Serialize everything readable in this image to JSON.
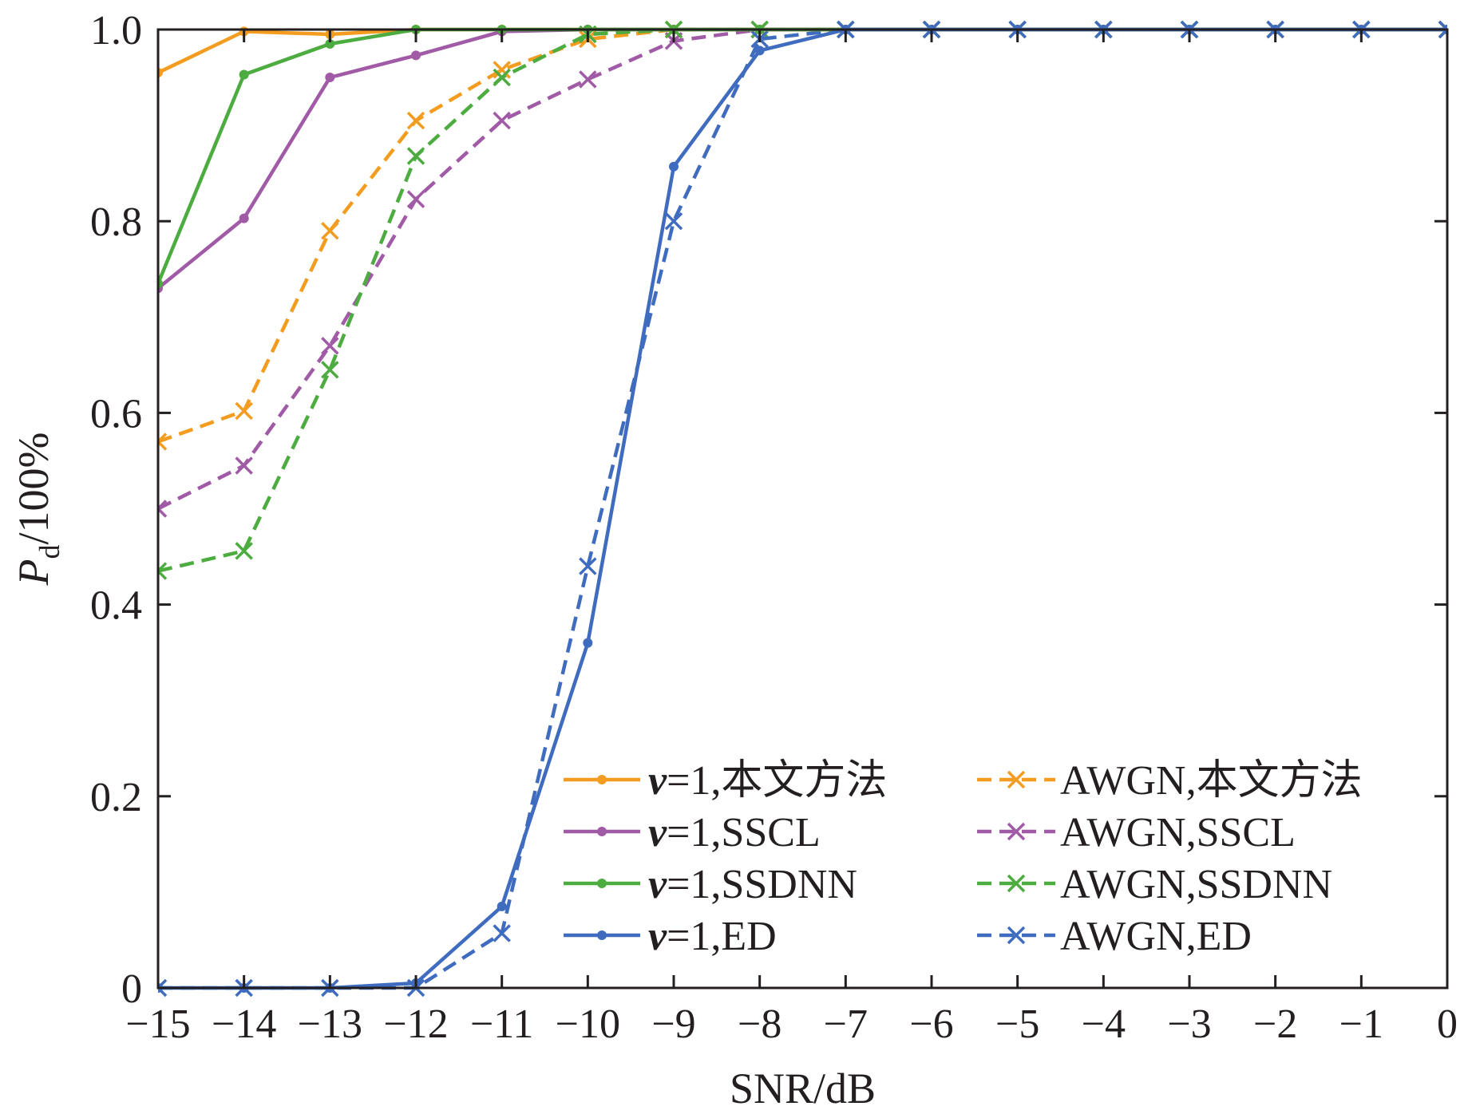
{
  "chart_data": {
    "type": "line",
    "xlabel": "SNR/dB",
    "ylabel": {
      "main": "P",
      "sub": "d",
      "rest": "/100%"
    },
    "xlim": [
      -15,
      0
    ],
    "ylim": [
      0,
      1
    ],
    "x": [
      -15,
      -14,
      -13,
      -12,
      -11,
      -10,
      -9,
      -8,
      -7,
      -6,
      -5,
      -4,
      -3,
      -2,
      -1,
      0
    ],
    "xticks": [
      -15,
      -14,
      -13,
      -12,
      -11,
      -10,
      -9,
      -8,
      -7,
      -6,
      -5,
      -4,
      -3,
      -2,
      -1,
      0
    ],
    "xtick_labels": [
      "−15",
      "−14",
      "−13",
      "−12",
      "−11",
      "−10",
      "−9",
      "−8",
      "−7",
      "−6",
      "−5",
      "−4",
      "−3",
      "−2",
      "−1",
      "0"
    ],
    "yticks": [
      0,
      0.2,
      0.4,
      0.6,
      0.8,
      1.0
    ],
    "ytick_labels": [
      "0",
      "0.2",
      "0.4",
      "0.6",
      "0.8",
      "1.0"
    ],
    "grid": false,
    "legend_position": "bottom-right, two columns",
    "series": [
      {
        "name": "v=1,本文方法",
        "name_italic": "v",
        "name_rest": "=1,本文方法",
        "color": "#f39c1f",
        "dash": "solid",
        "marker": "dot",
        "values": [
          0.955,
          0.998,
          0.995,
          1,
          1,
          1,
          1,
          1,
          1,
          1,
          1,
          1,
          1,
          1,
          1,
          1
        ]
      },
      {
        "name": "v=1,SSCL",
        "name_italic": "v",
        "name_rest": "=1,SSCL",
        "color": "#a05aa6",
        "dash": "solid",
        "marker": "dot",
        "values": [
          0.73,
          0.803,
          0.95,
          0.973,
          0.998,
          1,
          1,
          1,
          1,
          1,
          1,
          1,
          1,
          1,
          1,
          1
        ]
      },
      {
        "name": "v=1,SSDNN",
        "name_italic": "v",
        "name_rest": "=1,SSDNN",
        "color": "#4dac3f",
        "dash": "solid",
        "marker": "dot",
        "values": [
          0.735,
          0.953,
          0.985,
          1,
          1,
          1,
          1,
          1,
          1,
          1,
          1,
          1,
          1,
          1,
          1,
          1
        ]
      },
      {
        "name": "v=1,ED",
        "name_italic": "v",
        "name_rest": "=1,ED",
        "color": "#3f6cbf",
        "dash": "solid",
        "marker": "dot",
        "values": [
          0,
          0,
          0,
          0.005,
          0.085,
          0.36,
          0.857,
          0.978,
          1,
          1,
          1,
          1,
          1,
          1,
          1,
          1
        ]
      },
      {
        "name": "AWGN,本文方法",
        "name_italic": "",
        "name_rest": "AWGN,本文方法",
        "color": "#f39c1f",
        "dash": "dashed",
        "marker": "x",
        "values": [
          0.57,
          0.602,
          0.79,
          0.905,
          0.958,
          0.99,
          1,
          1,
          1,
          1,
          1,
          1,
          1,
          1,
          1,
          1
        ]
      },
      {
        "name": "AWGN,SSCL",
        "name_italic": "",
        "name_rest": "AWGN,SSCL",
        "color": "#a05aa6",
        "dash": "dashed",
        "marker": "x",
        "values": [
          0.5,
          0.545,
          0.67,
          0.823,
          0.905,
          0.948,
          0.988,
          1,
          1,
          1,
          1,
          1,
          1,
          1,
          1,
          1
        ]
      },
      {
        "name": "AWGN,SSDNN",
        "name_italic": "",
        "name_rest": "AWGN,SSDNN",
        "color": "#4dac3f",
        "dash": "dashed",
        "marker": "x",
        "values": [
          0.435,
          0.456,
          0.645,
          0.868,
          0.95,
          0.995,
          1,
          1,
          1,
          1,
          1,
          1,
          1,
          1,
          1,
          1
        ]
      },
      {
        "name": "AWGN,ED",
        "name_italic": "",
        "name_rest": "AWGN,ED",
        "color": "#3f6cbf",
        "dash": "dashed",
        "marker": "x",
        "values": [
          0,
          0,
          0,
          0,
          0.057,
          0.44,
          0.8,
          0.99,
          1,
          1,
          1,
          1,
          1,
          1,
          1,
          1
        ]
      }
    ]
  }
}
